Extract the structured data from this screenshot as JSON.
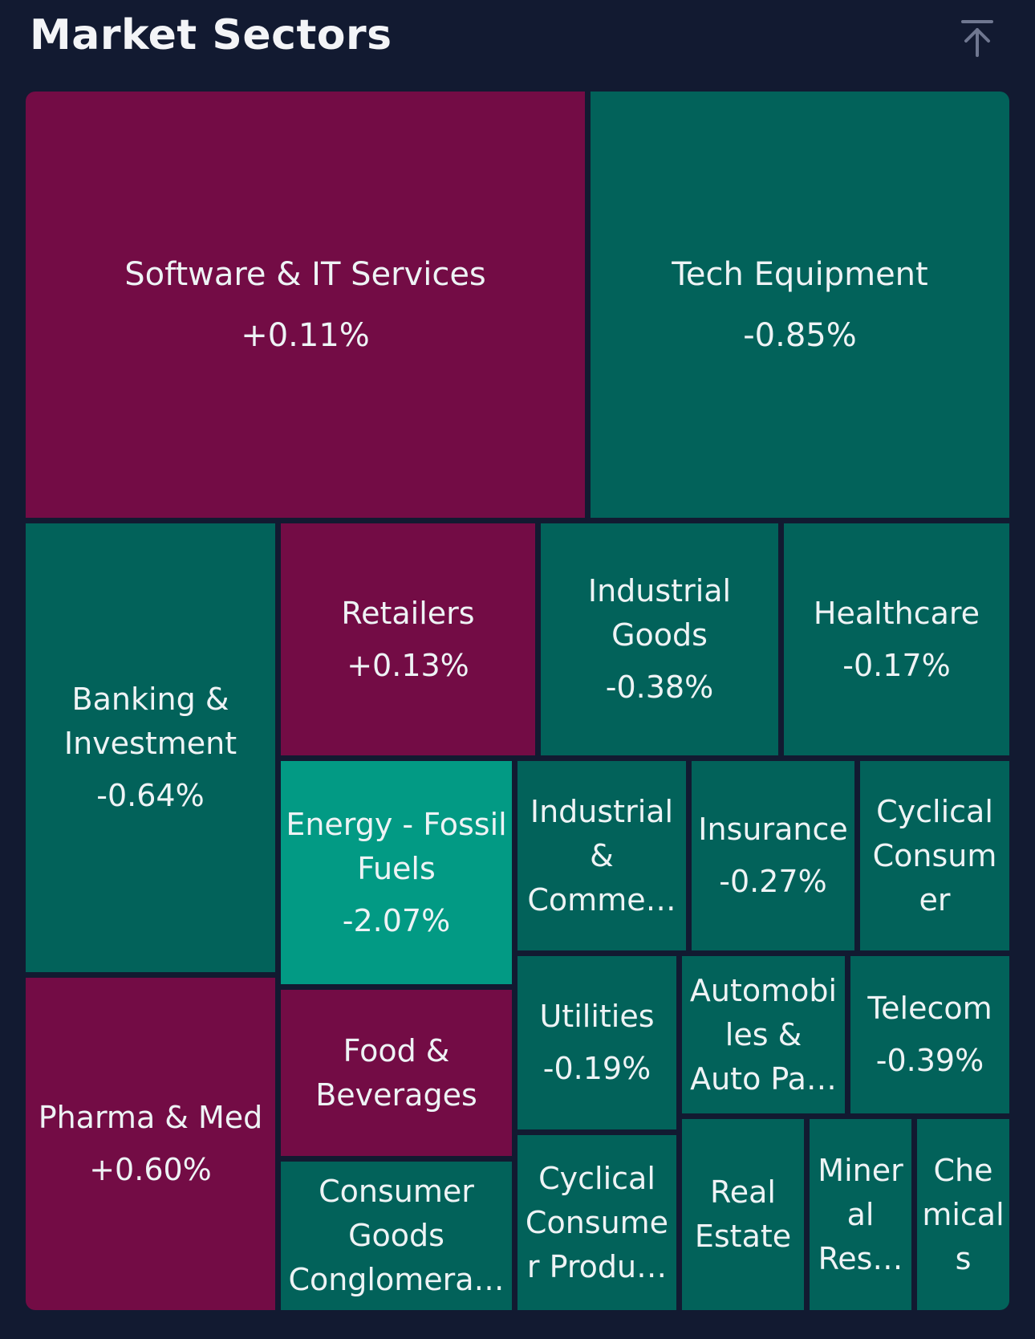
{
  "header": {
    "title": "Market Sectors",
    "scroll_top_icon": "arrow-up-to-top-icon"
  },
  "colors": {
    "background": "#121a31",
    "positive": "#730c45",
    "negative": "#02625a",
    "strong_negative": "#029a84",
    "text": "#eef3f5"
  },
  "chart_data": {
    "type": "treemap",
    "title": "Market Sectors",
    "cells": [
      {
        "name": "Software & IT Services",
        "change": "+0.11%",
        "value": 0.11,
        "color": "#730c45"
      },
      {
        "name": "Tech Equipment",
        "change": "-0.85%",
        "value": -0.85,
        "color": "#02625a"
      },
      {
        "name": "Banking & Investment",
        "change": "-0.64%",
        "value": -0.64,
        "color": "#02625a"
      },
      {
        "name": "Retailers",
        "change": "+0.13%",
        "value": 0.13,
        "color": "#730c45"
      },
      {
        "name": "Industrial Goods",
        "change": "-0.38%",
        "value": -0.38,
        "color": "#02625a"
      },
      {
        "name": "Healthcare",
        "change": "-0.17%",
        "value": -0.17,
        "color": "#02625a"
      },
      {
        "name": "Energy - Fossil Fuels",
        "change": "-2.07%",
        "value": -2.07,
        "color": "#029a84"
      },
      {
        "name": "Industrial & Comme…",
        "change": "",
        "color": "#02625a"
      },
      {
        "name": "Insurance",
        "change": "-0.27%",
        "value": -0.27,
        "color": "#02625a"
      },
      {
        "name": "Cyclical Consum er",
        "change": "",
        "color": "#02625a"
      },
      {
        "name": "Pharma & Med",
        "change": "+0.60%",
        "value": 0.6,
        "color": "#730c45"
      },
      {
        "name": "Food & Beverages",
        "change": "",
        "color": "#730c45"
      },
      {
        "name": "Utilities",
        "change": "-0.19%",
        "value": -0.19,
        "color": "#02625a"
      },
      {
        "name": "Automobi les & Auto Pa…",
        "change": "",
        "color": "#02625a"
      },
      {
        "name": "Telecom",
        "change": "-0.39%",
        "value": -0.39,
        "color": "#02625a"
      },
      {
        "name": "Consumer Goods Conglomera…",
        "change": "",
        "color": "#02625a"
      },
      {
        "name": "Cyclical Consume r Produ…",
        "change": "",
        "color": "#02625a"
      },
      {
        "name": "Real Estate",
        "change": "",
        "color": "#02625a"
      },
      {
        "name": "Miner al Res…",
        "change": "",
        "color": "#02625a"
      },
      {
        "name": "Che mical s",
        "change": "",
        "color": "#02625a"
      }
    ]
  }
}
